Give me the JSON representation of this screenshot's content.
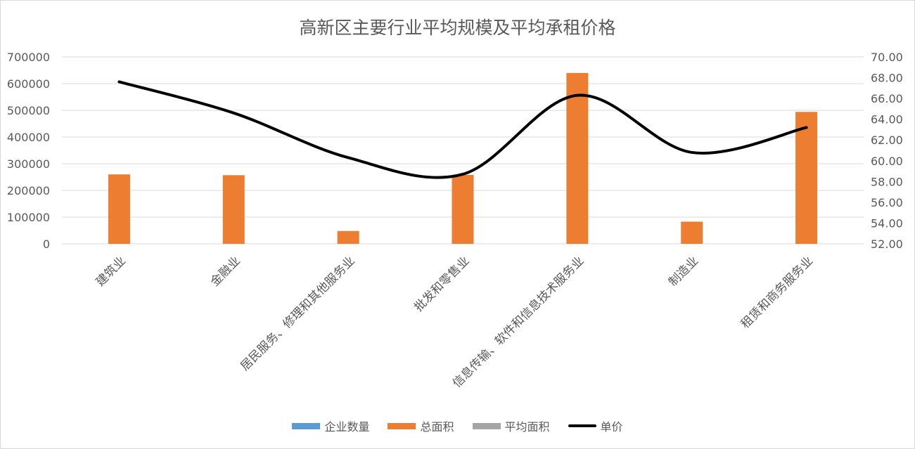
{
  "chart_data": {
    "type": "bar",
    "title": "高新区主要行业平均规模及平均承租价格",
    "categories": [
      "建筑业",
      "金融业",
      "居民服务、修理和其他服务业",
      "批发和零售业",
      "信息传输、软件和信息技术服务业",
      "制造业",
      "租赁和商务服务业"
    ],
    "category_labels": [
      "建筑业",
      "金融业",
      "居民服务、修理和其他服务业",
      "批发和零售业",
      "信息传输、软件和信息技术服务业",
      "制造业",
      "租赁和商务服务业"
    ],
    "series": [
      {
        "name": "企业数量",
        "type": "bar",
        "axis": "left",
        "color": "#5b9bd5",
        "values": [
          0,
          0,
          0,
          0,
          0,
          0,
          0
        ]
      },
      {
        "name": "总面积",
        "type": "bar",
        "axis": "left",
        "color": "#ed7d31",
        "values": [
          260000,
          257000,
          48000,
          258000,
          640000,
          83000,
          494000
        ]
      },
      {
        "name": "平均面积",
        "type": "bar",
        "axis": "left",
        "color": "#a5a5a5",
        "values": [
          0,
          0,
          0,
          0,
          0,
          0,
          0
        ]
      },
      {
        "name": "单价",
        "type": "line",
        "axis": "right",
        "color": "#000000",
        "smooth": true,
        "values": [
          67.6,
          64.6,
          60.3,
          58.7,
          66.3,
          60.8,
          63.2
        ]
      }
    ],
    "yleft": {
      "lim": [
        0,
        700000
      ],
      "ticks": [
        "0",
        "100000",
        "200000",
        "300000",
        "400000",
        "500000",
        "600000",
        "700000"
      ]
    },
    "yright": {
      "lim": [
        52,
        70
      ],
      "ticks": [
        "52.00",
        "54.00",
        "56.00",
        "58.00",
        "60.00",
        "62.00",
        "64.00",
        "66.00",
        "68.00",
        "70.00"
      ]
    },
    "grid": true,
    "legend": "bottom"
  }
}
